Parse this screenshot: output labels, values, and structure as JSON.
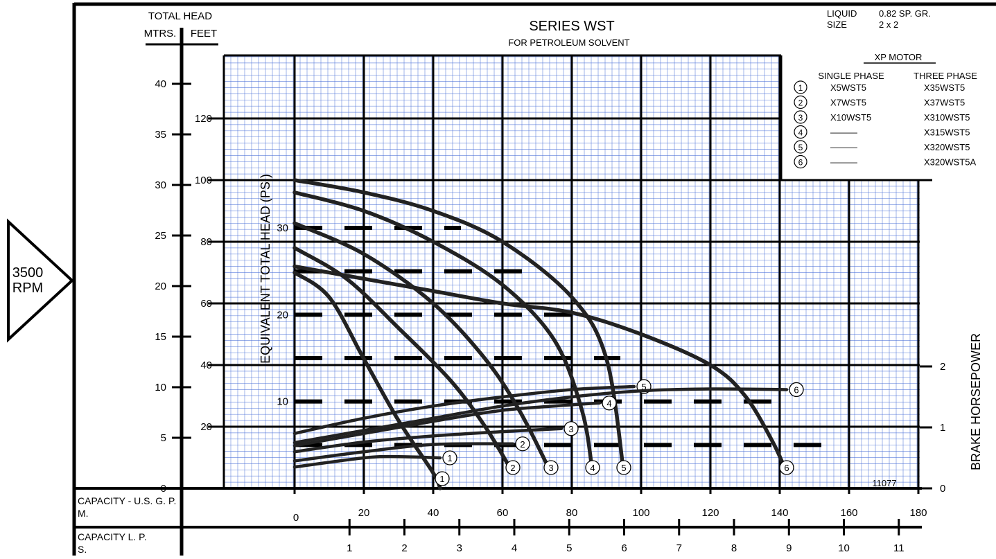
{
  "rpm_badge": {
    "value": "3500",
    "unit": "RPM"
  },
  "chart_data": {
    "type": "line",
    "title": "SERIES WST",
    "subtitle": "FOR PETROLEUM SOLVENT",
    "liquid_label": "LIQUID",
    "liquid_value": "0.82 SP. GR.",
    "size_label": "SIZE",
    "size_value": "2 x 2",
    "chart_id": "11077",
    "y_title_top": "TOTAL HEAD",
    "y_meters_label": "MTRS.",
    "y_feet_label": "FEET",
    "psi_label": "EQUIVALENT TOTAL HEAD (PSI)",
    "bhp_label": "BRAKE HORSEPOWER",
    "x_gpm_label": "CAPACITY - U.S. G. P. M.",
    "x_lps_label": "CAPACITY L. P. S.",
    "gpm_ticks": [
      0,
      20,
      40,
      60,
      80,
      100,
      120,
      140,
      160,
      180
    ],
    "feet_ticks": [
      20,
      40,
      60,
      80,
      100,
      120
    ],
    "meter_ticks": [
      0,
      5,
      10,
      15,
      20,
      25,
      30,
      35,
      40
    ],
    "psi_ticks": [
      10,
      20,
      30
    ],
    "bhp_ticks": [
      0,
      1,
      2
    ],
    "lps_ticks": [
      1,
      2,
      3,
      4,
      5,
      6,
      7,
      8,
      9,
      10,
      11
    ],
    "xlim": [
      0,
      180
    ],
    "ylim_feet": [
      0,
      140
    ],
    "motor_table": {
      "header": "XP MOTOR",
      "col_single": "SINGLE PHASE",
      "col_three": "THREE PHASE",
      "rows": [
        {
          "n": "1",
          "single": "X5WST5",
          "three": "X35WST5"
        },
        {
          "n": "2",
          "single": "X7WST5",
          "three": "X37WST5"
        },
        {
          "n": "3",
          "single": "X10WST5",
          "three": "X310WST5"
        },
        {
          "n": "4",
          "single": "———",
          "three": "X315WST5"
        },
        {
          "n": "5",
          "single": "———",
          "three": "X320WST5"
        },
        {
          "n": "6",
          "single": "———",
          "three": "X320WST5A"
        }
      ]
    },
    "head_series": [
      {
        "label": "1",
        "points": [
          [
            0,
            70
          ],
          [
            10,
            62
          ],
          [
            20,
            42
          ],
          [
            30,
            22
          ],
          [
            40,
            5
          ],
          [
            42,
            0
          ]
        ]
      },
      {
        "label": "2",
        "points": [
          [
            0,
            78
          ],
          [
            15,
            68
          ],
          [
            30,
            52
          ],
          [
            45,
            35
          ],
          [
            55,
            20
          ],
          [
            63,
            5
          ]
        ]
      },
      {
        "label": "3",
        "points": [
          [
            0,
            86
          ],
          [
            20,
            76
          ],
          [
            40,
            60
          ],
          [
            55,
            42
          ],
          [
            65,
            25
          ],
          [
            74,
            5
          ]
        ]
      },
      {
        "label": "4",
        "points": [
          [
            0,
            96
          ],
          [
            20,
            90
          ],
          [
            40,
            80
          ],
          [
            60,
            66
          ],
          [
            75,
            48
          ],
          [
            83,
            25
          ],
          [
            86,
            5
          ]
        ]
      },
      {
        "label": "5",
        "points": [
          [
            0,
            100
          ],
          [
            20,
            96
          ],
          [
            40,
            90
          ],
          [
            60,
            80
          ],
          [
            80,
            62
          ],
          [
            90,
            42
          ],
          [
            95,
            5
          ]
        ]
      },
      {
        "label": "6",
        "points": [
          [
            0,
            72
          ],
          [
            20,
            68
          ],
          [
            40,
            64
          ],
          [
            60,
            60
          ],
          [
            80,
            57
          ],
          [
            100,
            50
          ],
          [
            120,
            40
          ],
          [
            130,
            30
          ],
          [
            138,
            15
          ],
          [
            142,
            5
          ]
        ]
      }
    ],
    "bhp_series": [
      {
        "label": "1",
        "points": [
          [
            0,
            0.35
          ],
          [
            20,
            0.5
          ],
          [
            30,
            0.52
          ],
          [
            42,
            0.5
          ]
        ]
      },
      {
        "label": "2",
        "points": [
          [
            0,
            0.45
          ],
          [
            20,
            0.6
          ],
          [
            40,
            0.72
          ],
          [
            63,
            0.73
          ]
        ]
      },
      {
        "label": "3",
        "points": [
          [
            0,
            0.6
          ],
          [
            20,
            0.76
          ],
          [
            40,
            0.86
          ],
          [
            60,
            0.93
          ],
          [
            77,
            0.98
          ]
        ]
      },
      {
        "label": "4",
        "points": [
          [
            0,
            0.7
          ],
          [
            20,
            0.9
          ],
          [
            40,
            1.1
          ],
          [
            60,
            1.28
          ],
          [
            80,
            1.37
          ],
          [
            88,
            1.4
          ]
        ]
      },
      {
        "label": "5",
        "points": [
          [
            0,
            0.9
          ],
          [
            20,
            1.15
          ],
          [
            40,
            1.35
          ],
          [
            60,
            1.5
          ],
          [
            80,
            1.62
          ],
          [
            98,
            1.67
          ]
        ]
      },
      {
        "label": "6",
        "points": [
          [
            0,
            0.75
          ],
          [
            20,
            0.95
          ],
          [
            40,
            1.15
          ],
          [
            60,
            1.35
          ],
          [
            80,
            1.5
          ],
          [
            100,
            1.6
          ],
          [
            120,
            1.63
          ],
          [
            142,
            1.62
          ]
        ]
      }
    ]
  }
}
